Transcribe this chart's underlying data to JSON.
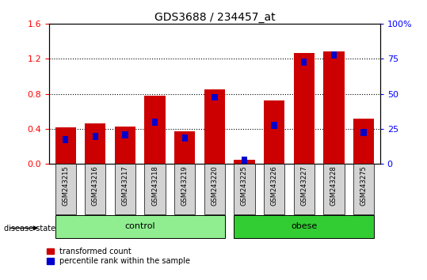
{
  "title": "GDS3688 / 234457_at",
  "categories": [
    "GSM243215",
    "GSM243216",
    "GSM243217",
    "GSM243218",
    "GSM243219",
    "GSM243220",
    "GSM243225",
    "GSM243226",
    "GSM243227",
    "GSM243228",
    "GSM243275"
  ],
  "red_values": [
    0.42,
    0.46,
    0.43,
    0.78,
    0.37,
    0.85,
    0.05,
    0.72,
    1.27,
    1.28,
    0.52
  ],
  "blue_values_pct": [
    20,
    22,
    23,
    32,
    21,
    50,
    5,
    30,
    75,
    80,
    25
  ],
  "groups": [
    {
      "label": "control",
      "indices": [
        0,
        1,
        2,
        3,
        4,
        5
      ],
      "color": "#90EE90"
    },
    {
      "label": "obese",
      "indices": [
        6,
        7,
        8,
        9,
        10
      ],
      "color": "#32CD32"
    }
  ],
  "ylim_left": [
    0,
    1.6
  ],
  "ylim_right": [
    0,
    100
  ],
  "yticks_left": [
    0,
    0.4,
    0.8,
    1.2,
    1.6
  ],
  "yticks_right": [
    0,
    25,
    50,
    75,
    100
  ],
  "yticklabels_right": [
    "0",
    "25",
    "50",
    "75",
    "100%"
  ],
  "bar_width": 0.7,
  "red_color": "#CC0000",
  "blue_color": "#0000CC",
  "background_plot": "#FFFFFF",
  "background_xtick": "#D3D3D3",
  "legend_red": "transformed count",
  "legend_blue": "percentile rank within the sample",
  "disease_label": "disease state",
  "title_fontsize": 10,
  "axis_fontsize": 8
}
